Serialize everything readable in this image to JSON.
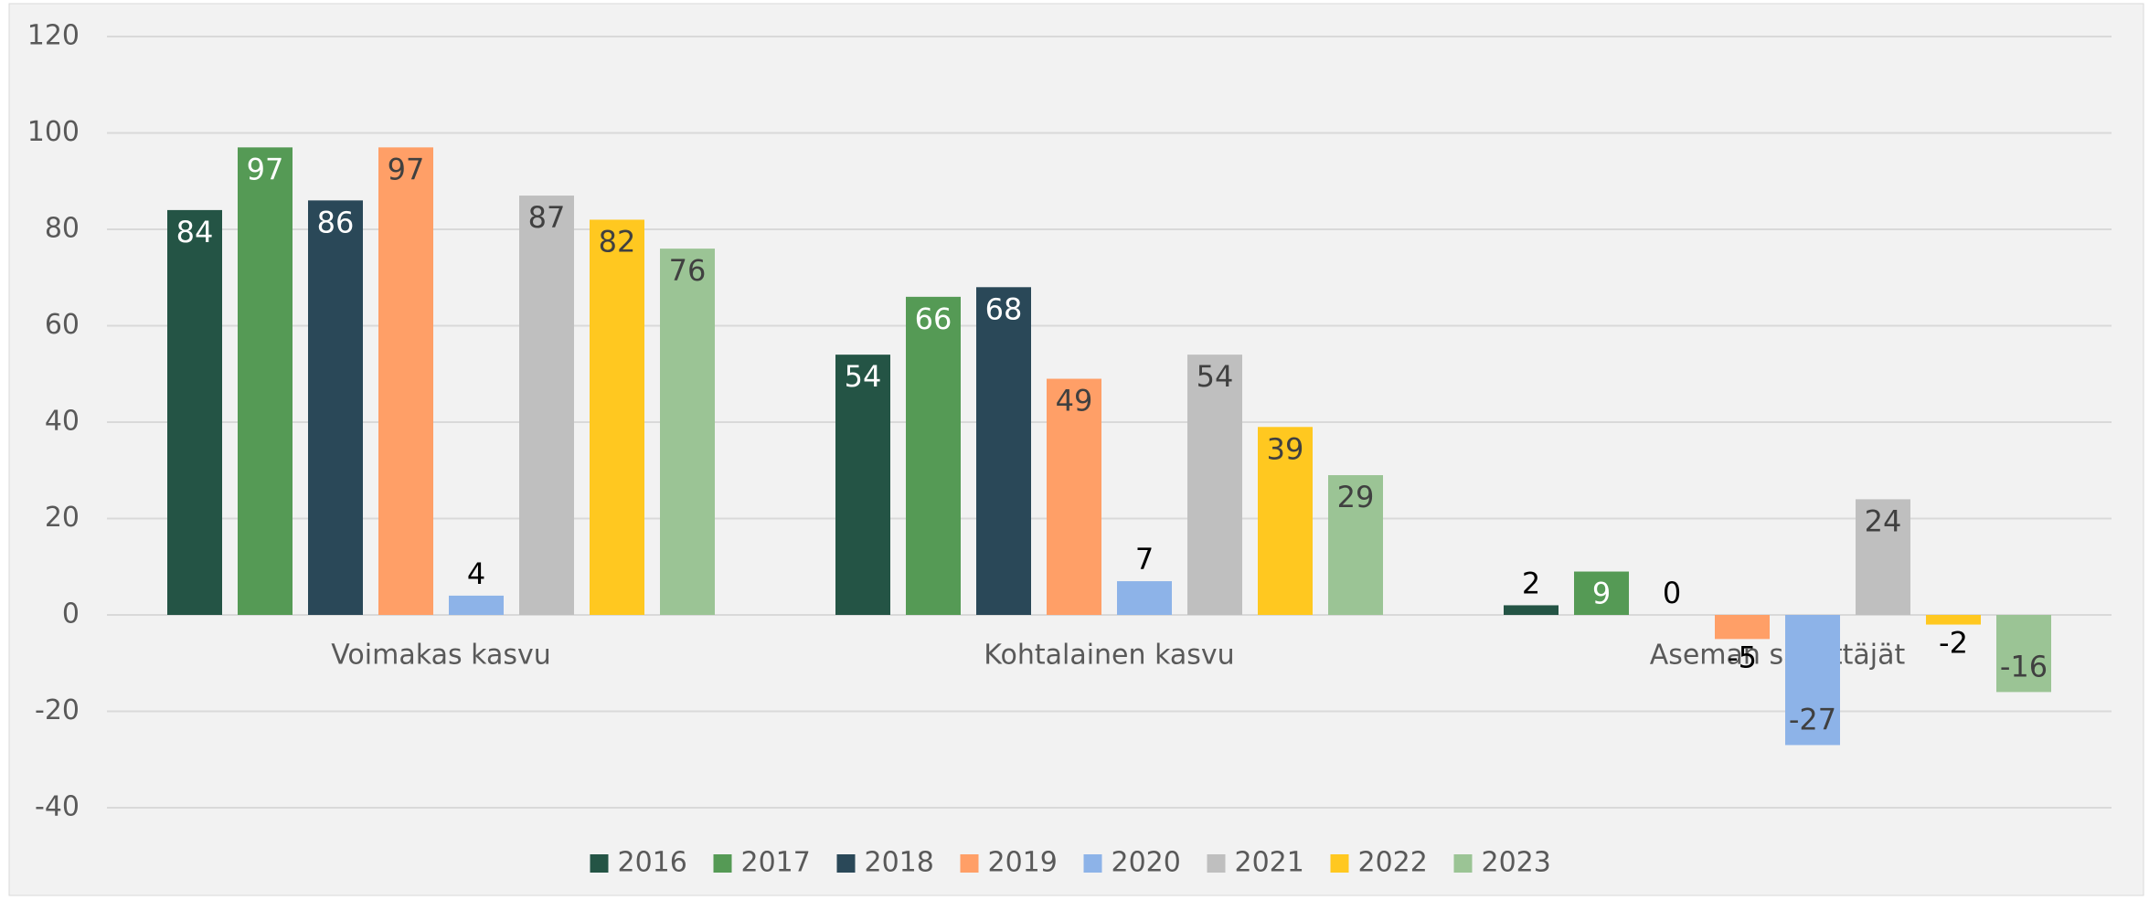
{
  "chart_data": {
    "type": "bar",
    "categories": [
      "Voimakas kasvu",
      "Kohtalainen kasvu",
      "Aseman säilyttäjät"
    ],
    "series": [
      {
        "name": "2016",
        "color": "#245445",
        "values": [
          84,
          54,
          2
        ]
      },
      {
        "name": "2017",
        "color": "#559a55",
        "values": [
          97,
          66,
          9
        ]
      },
      {
        "name": "2018",
        "color": "#2a4858",
        "values": [
          86,
          68,
          0
        ]
      },
      {
        "name": "2019",
        "color": "#ff9f67",
        "values": [
          97,
          49,
          -5
        ]
      },
      {
        "name": "2020",
        "color": "#8db3e8",
        "values": [
          4,
          7,
          -27
        ]
      },
      {
        "name": "2021",
        "color": "#bfbfbf",
        "values": [
          87,
          54,
          24
        ]
      },
      {
        "name": "2022",
        "color": "#ffc820",
        "values": [
          82,
          39,
          -2
        ]
      },
      {
        "name": "2023",
        "color": "#9bc495",
        "values": [
          76,
          29,
          -16
        ]
      }
    ],
    "ylim": [
      -40,
      120
    ],
    "yticks": [
      -40,
      -20,
      0,
      20,
      40,
      60,
      80,
      100,
      120
    ],
    "grid": true,
    "legend": "bottom"
  }
}
